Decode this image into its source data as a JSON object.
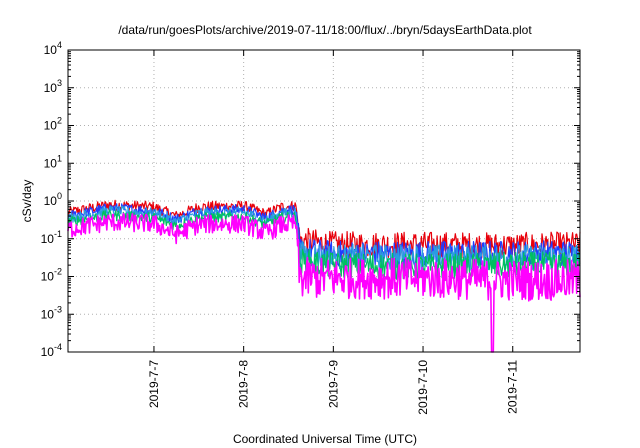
{
  "chart_data": {
    "type": "line",
    "title": "/data/run/goesPlots/archive/2019-07-11/18:00/flux/../bryn/5daysEarthData.plot",
    "xlabel": "Coordinated Universal Time (UTC)",
    "ylabel": "cSv/day",
    "yscale": "log",
    "ylim": [
      0.0001,
      10000
    ],
    "xlim": [
      "2019-07-06T01:00",
      "2019-07-11T18:00"
    ],
    "grid": true,
    "legend": "none",
    "y_ticks": [
      {
        "base": "10",
        "exp": "-4"
      },
      {
        "base": "10",
        "exp": "-3"
      },
      {
        "base": "10",
        "exp": "-2"
      },
      {
        "base": "10",
        "exp": "-1"
      },
      {
        "base": "10",
        "exp": "0"
      },
      {
        "base": "10",
        "exp": "1"
      },
      {
        "base": "10",
        "exp": "2"
      },
      {
        "base": "10",
        "exp": "3"
      },
      {
        "base": "10",
        "exp": "4"
      }
    ],
    "x_ticks": [
      {
        "label": "2019-7-7",
        "t": "2019-07-07T00:00"
      },
      {
        "label": "2019-7-8",
        "t": "2019-07-08T00:00"
      },
      {
        "label": "2019-7-9",
        "t": "2019-07-09T00:00"
      },
      {
        "label": "2019-7-10",
        "t": "2019-07-10T00:00"
      },
      {
        "label": "2019-7-11",
        "t": "2019-07-11T00:00"
      }
    ],
    "step_time": "2019-07-08T14:30",
    "dropout": {
      "t_start": "2019-07-10T18:20",
      "t_end": "2019-07-10T18:50",
      "value": 0.0001
    },
    "series": [
      {
        "color": "#e8000b",
        "x": [
          "2019-07-06T01:00",
          "2019-07-06T12:00",
          "2019-07-07T00:00",
          "2019-07-07T06:00",
          "2019-07-07T12:00",
          "2019-07-08T00:00",
          "2019-07-08T06:00",
          "2019-07-08T10:00",
          "2019-07-08T14:00",
          "2019-07-08T15:00",
          "2019-07-09T00:00",
          "2019-07-10T00:00",
          "2019-07-11T00:00",
          "2019-07-11T18:00"
        ],
        "values": [
          0.5,
          0.8,
          0.7,
          0.4,
          0.7,
          0.75,
          0.45,
          0.7,
          0.75,
          0.09,
          0.07,
          0.07,
          0.065,
          0.07
        ]
      },
      {
        "color": "#1f3cff",
        "x": [
          "2019-07-06T01:00",
          "2019-07-06T12:00",
          "2019-07-07T00:00",
          "2019-07-07T06:00",
          "2019-07-07T12:00",
          "2019-07-08T00:00",
          "2019-07-08T06:00",
          "2019-07-08T10:00",
          "2019-07-08T14:00",
          "2019-07-08T15:00",
          "2019-07-09T00:00",
          "2019-07-10T00:00",
          "2019-07-11T00:00",
          "2019-07-11T18:00"
        ],
        "values": [
          0.4,
          0.65,
          0.55,
          0.33,
          0.55,
          0.6,
          0.36,
          0.55,
          0.6,
          0.05,
          0.04,
          0.04,
          0.04,
          0.042
        ]
      },
      {
        "color": "#2a9ce0",
        "x": [
          "2019-07-06T01:00",
          "2019-07-06T12:00",
          "2019-07-07T00:00",
          "2019-07-07T06:00",
          "2019-07-07T12:00",
          "2019-07-08T00:00",
          "2019-07-08T06:00",
          "2019-07-08T10:00",
          "2019-07-08T14:00",
          "2019-07-08T15:00",
          "2019-07-09T00:00",
          "2019-07-10T00:00",
          "2019-07-11T00:00",
          "2019-07-11T18:00"
        ],
        "values": [
          0.35,
          0.55,
          0.47,
          0.28,
          0.47,
          0.5,
          0.3,
          0.46,
          0.5,
          0.04,
          0.032,
          0.032,
          0.032,
          0.033
        ]
      },
      {
        "color": "#00c060",
        "x": [
          "2019-07-06T01:00",
          "2019-07-06T12:00",
          "2019-07-07T00:00",
          "2019-07-07T06:00",
          "2019-07-07T12:00",
          "2019-07-08T00:00",
          "2019-07-08T06:00",
          "2019-07-08T10:00",
          "2019-07-08T14:00",
          "2019-07-08T15:00",
          "2019-07-09T00:00",
          "2019-07-10T00:00",
          "2019-07-11T00:00",
          "2019-07-11T18:00"
        ],
        "values": [
          0.28,
          0.42,
          0.36,
          0.22,
          0.36,
          0.38,
          0.24,
          0.36,
          0.38,
          0.025,
          0.02,
          0.018,
          0.02,
          0.02
        ]
      },
      {
        "color": "#ff00ff",
        "x": [
          "2019-07-06T01:00",
          "2019-07-06T12:00",
          "2019-07-07T00:00",
          "2019-07-07T06:00",
          "2019-07-07T12:00",
          "2019-07-08T00:00",
          "2019-07-08T06:00",
          "2019-07-08T10:00",
          "2019-07-08T14:00",
          "2019-07-08T15:00",
          "2019-07-09T00:00",
          "2019-07-10T00:00",
          "2019-07-11T00:00",
          "2019-07-11T18:00"
        ],
        "values": [
          0.18,
          0.28,
          0.25,
          0.13,
          0.24,
          0.25,
          0.14,
          0.23,
          0.25,
          0.009,
          0.009,
          0.009,
          0.008,
          0.008
        ]
      }
    ]
  }
}
